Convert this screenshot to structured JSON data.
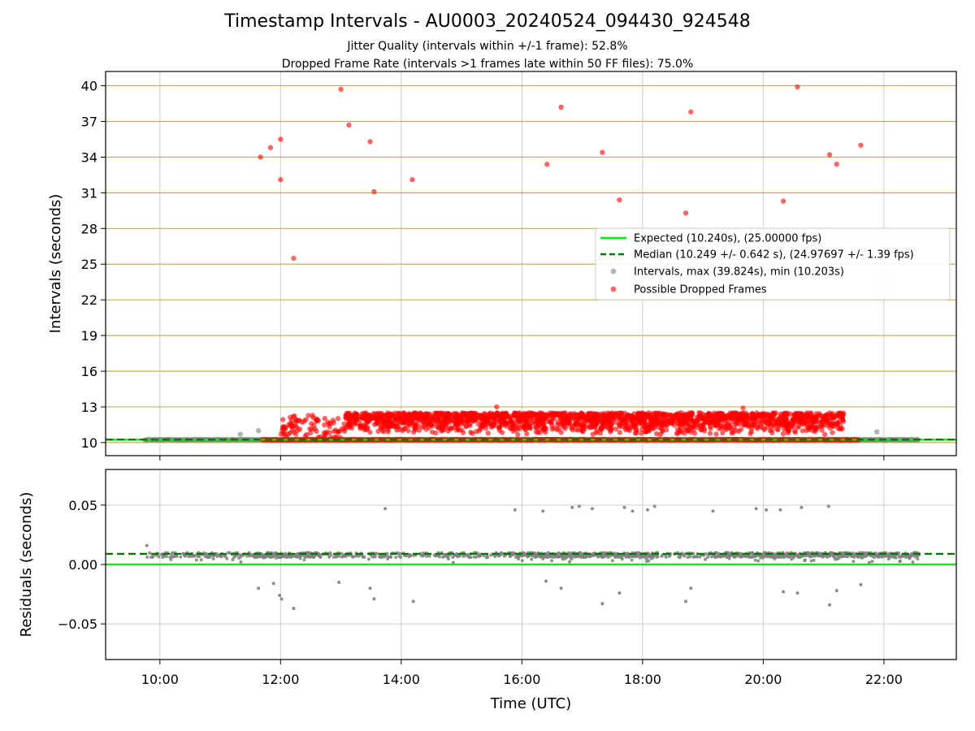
{
  "chart_data": {
    "type": "scatter",
    "title": "Timestamp Intervals - AU0003_20240524_094430_924548",
    "subtitle_lines": [
      "Jitter Quality (intervals within +/-1 frame): 52.8%",
      "Dropped Frame Rate (intervals >1 frames late within 50 FF files): 75.0%"
    ],
    "colors": {
      "expected": "#00ee00",
      "median": "#007700",
      "intervals": "#808080",
      "dropped": "#ff0000",
      "grid_top": "#c8ad55",
      "grid": "#cccccc"
    },
    "panels": [
      {
        "ylabel": "Intervals (seconds)",
        "ylim": [
          8.9,
          41.2
        ],
        "yticks": [
          10,
          13,
          16,
          19,
          22,
          25,
          28,
          31,
          34,
          37,
          40
        ],
        "expected_value": 10.24,
        "median_value": 10.249,
        "legend_position": "center-right",
        "legend": [
          "Expected (10.240s), (25.00000 fps)",
          "Median (10.249 +/- 0.642 s), (24.97697 +/- 1.39 fps)",
          "Intervals, max (39.824s), min (10.203s)",
          "Possible Dropped Frames"
        ],
        "dropped_outliers": [
          {
            "x": "11:40",
            "y": 34.0
          },
          {
            "x": "11:50",
            "y": 34.8
          },
          {
            "x": "12:00",
            "y": 35.5
          },
          {
            "x": "12:00",
            "y": 32.1
          },
          {
            "x": "12:13",
            "y": 25.5
          },
          {
            "x": "13:00",
            "y": 39.7
          },
          {
            "x": "13:08",
            "y": 36.7
          },
          {
            "x": "13:29",
            "y": 35.3
          },
          {
            "x": "13:33",
            "y": 31.1
          },
          {
            "x": "14:11",
            "y": 32.1
          },
          {
            "x": "16:25",
            "y": 33.4
          },
          {
            "x": "16:39",
            "y": 38.2
          },
          {
            "x": "17:20",
            "y": 34.4
          },
          {
            "x": "17:37",
            "y": 30.4
          },
          {
            "x": "18:43",
            "y": 29.3
          },
          {
            "x": "18:48",
            "y": 37.8
          },
          {
            "x": "20:20",
            "y": 30.3
          },
          {
            "x": "20:34",
            "y": 39.9
          },
          {
            "x": "21:06",
            "y": 34.2
          },
          {
            "x": "21:13",
            "y": 33.4
          },
          {
            "x": "21:37",
            "y": 35.0
          },
          {
            "x": "15:35",
            "y": 13.0
          },
          {
            "x": "19:40",
            "y": 12.9
          }
        ],
        "gray_outliers": [
          {
            "x": "11:20",
            "y": 10.7
          },
          {
            "x": "11:38",
            "y": 11.0
          },
          {
            "x": "21:53",
            "y": 10.9
          }
        ],
        "intervals_time_range": [
          "09:45",
          "22:35"
        ],
        "dropped_band_range": [
          "11:42",
          "21:35"
        ],
        "dense_dropped_band_y": [
          10.3,
          12.5
        ],
        "dense_dropped_band_range": [
          "13:05",
          "21:20"
        ]
      },
      {
        "ylabel": "Residuals (seconds)",
        "ylim": [
          -0.08,
          0.08
        ],
        "yticks": [
          0.05,
          0.0,
          -0.05
        ],
        "ytick_labels": [
          "0.05",
          "0.00",
          "−0.05"
        ],
        "expected_value": 0.0,
        "median_value": 0.009,
        "residual_band": [
          0.006,
          0.01
        ],
        "high_outliers": [
          {
            "x": "09:47",
            "y": 0.016
          },
          {
            "x": "13:44",
            "y": 0.047
          },
          {
            "x": "15:53",
            "y": 0.046
          },
          {
            "x": "16:21",
            "y": 0.045
          },
          {
            "x": "16:50",
            "y": 0.048
          },
          {
            "x": "16:57",
            "y": 0.049
          },
          {
            "x": "17:10",
            "y": 0.047
          },
          {
            "x": "17:42",
            "y": 0.048
          },
          {
            "x": "17:50",
            "y": 0.045
          },
          {
            "x": "18:05",
            "y": 0.046
          },
          {
            "x": "18:12",
            "y": 0.049
          },
          {
            "x": "19:10",
            "y": 0.045
          },
          {
            "x": "19:53",
            "y": 0.047
          },
          {
            "x": "20:03",
            "y": 0.046
          },
          {
            "x": "20:17",
            "y": 0.046
          },
          {
            "x": "20:38",
            "y": 0.048
          },
          {
            "x": "21:05",
            "y": 0.049
          }
        ],
        "low_outliers": [
          {
            "x": "11:38",
            "y": -0.02
          },
          {
            "x": "11:53",
            "y": -0.016
          },
          {
            "x": "11:59",
            "y": -0.026
          },
          {
            "x": "12:01",
            "y": -0.029
          },
          {
            "x": "12:13",
            "y": -0.037
          },
          {
            "x": "12:58",
            "y": -0.015
          },
          {
            "x": "13:29",
            "y": -0.02
          },
          {
            "x": "13:33",
            "y": -0.029
          },
          {
            "x": "14:12",
            "y": -0.031
          },
          {
            "x": "16:24",
            "y": -0.014
          },
          {
            "x": "16:39",
            "y": -0.02
          },
          {
            "x": "17:20",
            "y": -0.033
          },
          {
            "x": "17:37",
            "y": -0.024
          },
          {
            "x": "18:43",
            "y": -0.031
          },
          {
            "x": "18:48",
            "y": -0.02
          },
          {
            "x": "20:20",
            "y": -0.023
          },
          {
            "x": "20:34",
            "y": -0.024
          },
          {
            "x": "21:06",
            "y": -0.034
          },
          {
            "x": "21:13",
            "y": -0.022
          },
          {
            "x": "21:37",
            "y": -0.017
          }
        ]
      }
    ],
    "x": {
      "xlabel": "Time (UTC)",
      "xlim": [
        "09:06",
        "23:12"
      ],
      "xticks": [
        "10:00",
        "12:00",
        "14:00",
        "16:00",
        "18:00",
        "20:00",
        "22:00"
      ]
    },
    "grid": true
  }
}
